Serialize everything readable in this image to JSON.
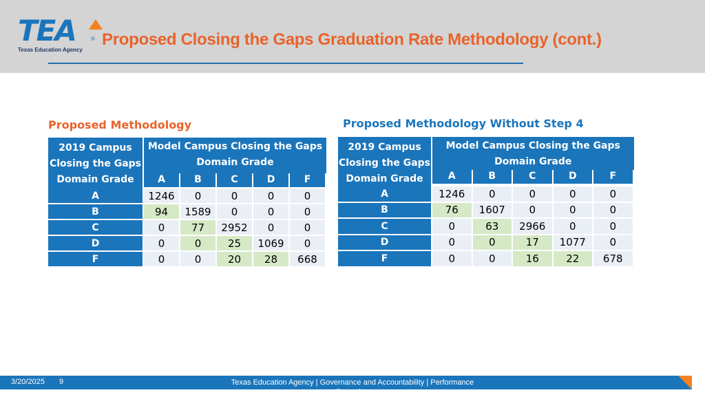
{
  "logo": {
    "mark": "TEA",
    "reg": "®",
    "subtitle": "Texas Education Agency"
  },
  "title": "Proposed Closing the Gaps Graduation Rate Methodology (cont.)",
  "colors": {
    "header_bg": "#d4d4d4",
    "title": "#e8632b",
    "accent": "#1b75bb",
    "row_bg": "#eaeef5",
    "diagonal": "#d6e9c6"
  },
  "left": {
    "title": "Proposed Methodology",
    "row_header_label": "2019 Campus Closing the Gaps Domain Grade",
    "col_group_label": "Model Campus Closing the Gaps Domain Grade",
    "columns": [
      "A",
      "B",
      "C",
      "D",
      "F"
    ],
    "rows": [
      {
        "grade": "A",
        "values": [
          "1246",
          "0",
          "0",
          "0",
          "0"
        ]
      },
      {
        "grade": "B",
        "values": [
          "94",
          "1589",
          "0",
          "0",
          "0"
        ]
      },
      {
        "grade": "C",
        "values": [
          "0",
          "77",
          "2952",
          "0",
          "0"
        ]
      },
      {
        "grade": "D",
        "values": [
          "0",
          "0",
          "25",
          "1069",
          "0"
        ]
      },
      {
        "grade": "F",
        "values": [
          "0",
          "0",
          "20",
          "28",
          "668"
        ]
      }
    ]
  },
  "right": {
    "title": "Proposed Methodology Without Step 4",
    "row_header_label": "2019 Campus Closing the Gaps Domain Grade",
    "col_group_label": "Model Campus Closing the Gaps Domain Grade",
    "columns": [
      "A",
      "B",
      "C",
      "D",
      "F"
    ],
    "rows": [
      {
        "grade": "A",
        "values": [
          "1246",
          "0",
          "0",
          "0",
          "0"
        ]
      },
      {
        "grade": "B",
        "values": [
          "76",
          "1607",
          "0",
          "0",
          "0"
        ]
      },
      {
        "grade": "C",
        "values": [
          "0",
          "63",
          "2966",
          "0",
          "0"
        ]
      },
      {
        "grade": "D",
        "values": [
          "0",
          "0",
          "17",
          "1077",
          "0"
        ]
      },
      {
        "grade": "F",
        "values": [
          "0",
          "0",
          "16",
          "22",
          "678"
        ]
      }
    ]
  },
  "footer": {
    "date": "3/20/2025",
    "page": "9",
    "org": "Texas Education Agency | Governance and Accountability | Performance Reporting"
  }
}
